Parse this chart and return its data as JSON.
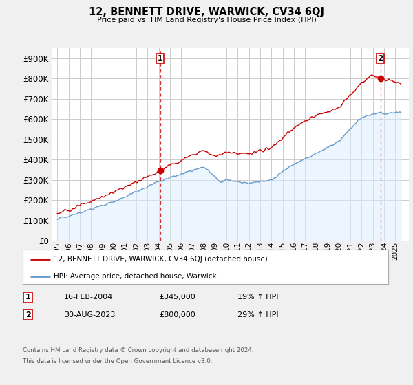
{
  "title": "12, BENNETT DRIVE, WARWICK, CV34 6QJ",
  "subtitle": "Price paid vs. HM Land Registry's House Price Index (HPI)",
  "ylim": [
    0,
    950000
  ],
  "yticks": [
    0,
    100000,
    200000,
    300000,
    400000,
    500000,
    600000,
    700000,
    800000,
    900000
  ],
  "xlim_start": 1994.5,
  "xlim_end": 2026.2,
  "marker1_x": 2004.12,
  "marker1_y": 345000,
  "marker2_x": 2023.67,
  "marker2_y": 800000,
  "marker1_label": "1",
  "marker2_label": "2",
  "legend_line1": "12, BENNETT DRIVE, WARWICK, CV34 6QJ (detached house)",
  "legend_line2": "HPI: Average price, detached house, Warwick",
  "table_row1": [
    "1",
    "16-FEB-2004",
    "£345,000",
    "19% ↑ HPI"
  ],
  "table_row2": [
    "2",
    "30-AUG-2023",
    "£800,000",
    "29% ↑ HPI"
  ],
  "footnote1": "Contains HM Land Registry data © Crown copyright and database right 2024.",
  "footnote2": "This data is licensed under the Open Government Licence v3.0.",
  "red_color": "#cc0000",
  "blue_color": "#6699cc",
  "blue_fill": "#ddeeff",
  "bg_color": "#f0f0f0",
  "plot_bg_color": "#ffffff",
  "grid_color": "#cccccc",
  "dashed_line_color": "#cc0000"
}
